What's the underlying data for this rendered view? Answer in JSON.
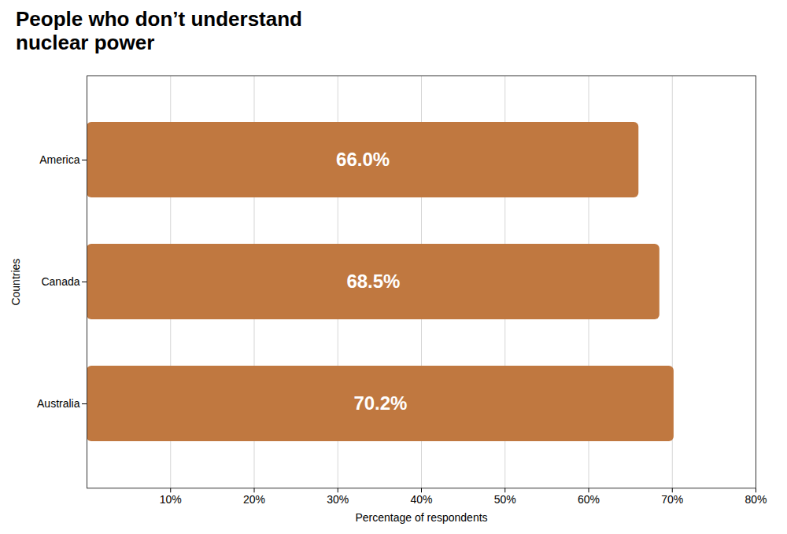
{
  "chart_data": {
    "type": "bar",
    "orientation": "horizontal",
    "title": "People who don’t understand\nnuclear power",
    "categories": [
      "Australia",
      "Canada",
      "America"
    ],
    "values": [
      70.2,
      68.5,
      66.0
    ],
    "value_labels": [
      "70.2%",
      "68.5%",
      "66.0%"
    ],
    "data_labels": true,
    "color": "#c07840",
    "xlabel": "Percentage of respondents",
    "ylabel": "Countries",
    "xlim": [
      0,
      80
    ],
    "xticks": [
      {
        "value": 10,
        "label": "10%"
      },
      {
        "value": 20,
        "label": "20%"
      },
      {
        "value": 30,
        "label": "30%"
      },
      {
        "value": 40,
        "label": "40%"
      },
      {
        "value": 50,
        "label": "50%"
      },
      {
        "value": 60,
        "label": "60%"
      },
      {
        "value": 70,
        "label": "70%"
      },
      {
        "value": 80,
        "label": "80%"
      }
    ],
    "grid": true
  }
}
